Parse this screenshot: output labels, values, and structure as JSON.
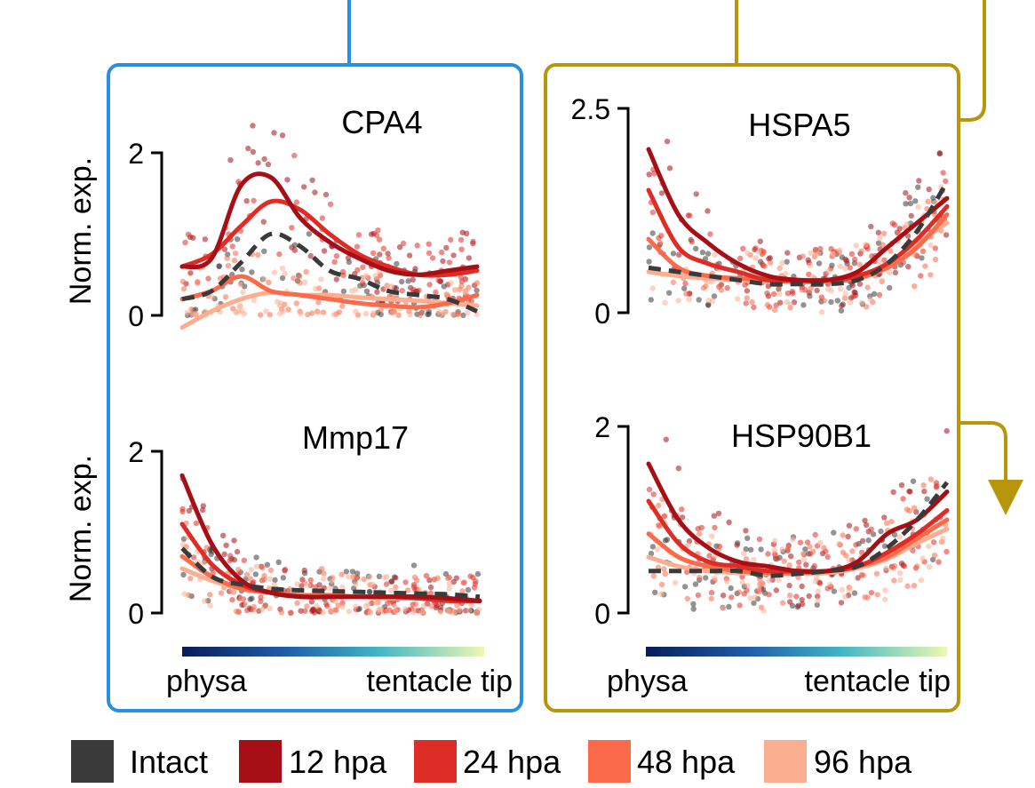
{
  "colors": {
    "intact": "#3a3a3a",
    "hpa12": "#a50f15",
    "hpa24": "#de2d26",
    "hpa48": "#fb6a4a",
    "hpa96": "#fcae91",
    "blue_box": "#2b8fe0",
    "gold_box": "#b8960c"
  },
  "legend": [
    {
      "key": "intact",
      "label": "Intact"
    },
    {
      "key": "hpa12",
      "label": "12 hpa"
    },
    {
      "key": "hpa24",
      "label": "24 hpa"
    },
    {
      "key": "hpa48",
      "label": "48 hpa"
    },
    {
      "key": "hpa96",
      "label": "96 hpa"
    }
  ],
  "gradient_labels": {
    "left": "physa",
    "right": "tentacle tip"
  },
  "ylabel": "Norm. exp.",
  "chart_data": [
    {
      "type": "line",
      "title": "CPA4",
      "ylabel": "Norm. exp.",
      "ylim": [
        0,
        2
      ],
      "yticks": [
        "0",
        "2"
      ],
      "x": [
        0,
        0.1,
        0.2,
        0.3,
        0.4,
        0.5,
        0.6,
        0.7,
        0.8,
        0.9,
        1
      ],
      "series": [
        {
          "name": "Intact",
          "key": "intact",
          "dashed": true,
          "values": [
            0.2,
            0.3,
            0.65,
            1.0,
            0.85,
            0.55,
            0.45,
            0.3,
            0.25,
            0.2,
            0.05
          ]
        },
        {
          "name": "12 hpa",
          "key": "hpa12",
          "values": [
            0.6,
            0.7,
            1.6,
            1.7,
            1.2,
            0.9,
            0.7,
            0.55,
            0.5,
            0.55,
            0.6
          ]
        },
        {
          "name": "24 hpa",
          "key": "hpa24",
          "values": [
            0.6,
            0.75,
            1.1,
            1.4,
            1.3,
            1.0,
            0.75,
            0.6,
            0.5,
            0.5,
            0.55
          ]
        },
        {
          "name": "48 hpa",
          "key": "hpa48",
          "values": [
            0.2,
            0.3,
            0.48,
            0.3,
            0.25,
            0.2,
            0.15,
            0.12,
            0.1,
            0.15,
            0.25
          ]
        },
        {
          "name": "96 hpa",
          "key": "hpa96",
          "values": [
            -0.15,
            0.05,
            0.2,
            0.28,
            0.25,
            0.25,
            0.22,
            0.2,
            0.18,
            0.15,
            0.12
          ]
        }
      ]
    },
    {
      "type": "line",
      "title": "Mmp17",
      "ylabel": "Norm. exp.",
      "ylim": [
        0,
        2
      ],
      "yticks": [
        "0",
        "2"
      ],
      "x": [
        0,
        0.1,
        0.2,
        0.3,
        0.4,
        0.5,
        0.6,
        0.7,
        0.8,
        0.9,
        1
      ],
      "series": [
        {
          "name": "Intact",
          "key": "intact",
          "dashed": true,
          "values": [
            0.8,
            0.45,
            0.35,
            0.3,
            0.28,
            0.27,
            0.26,
            0.25,
            0.24,
            0.23,
            0.2
          ]
        },
        {
          "name": "12 hpa",
          "key": "hpa12",
          "values": [
            1.7,
            0.85,
            0.4,
            0.25,
            0.2,
            0.2,
            0.2,
            0.2,
            0.2,
            0.18,
            0.15
          ]
        },
        {
          "name": "24 hpa",
          "key": "hpa24",
          "values": [
            1.1,
            0.6,
            0.35,
            0.25,
            0.2,
            0.2,
            0.2,
            0.2,
            0.18,
            0.15,
            0.15
          ]
        },
        {
          "name": "48 hpa",
          "key": "hpa48",
          "values": [
            0.7,
            0.45,
            0.3,
            0.25,
            0.22,
            0.22,
            0.2,
            0.2,
            0.2,
            0.18,
            0.15
          ]
        },
        {
          "name": "96 hpa",
          "key": "hpa96",
          "values": [
            0.55,
            0.4,
            0.3,
            0.25,
            0.22,
            0.2,
            0.2,
            0.18,
            0.18,
            0.15,
            0.15
          ]
        }
      ]
    },
    {
      "type": "line",
      "title": "HSPA5",
      "ylabel": "",
      "ylim": [
        0,
        2.5
      ],
      "yticks": [
        "0",
        "2.5"
      ],
      "x": [
        0,
        0.1,
        0.2,
        0.3,
        0.4,
        0.5,
        0.6,
        0.7,
        0.8,
        0.9,
        1
      ],
      "series": [
        {
          "name": "Intact",
          "key": "intact",
          "dashed": true,
          "values": [
            0.55,
            0.5,
            0.45,
            0.4,
            0.35,
            0.35,
            0.35,
            0.4,
            0.6,
            1.0,
            1.6
          ]
        },
        {
          "name": "12 hpa",
          "key": "hpa12",
          "values": [
            2.0,
            1.2,
            0.85,
            0.6,
            0.45,
            0.4,
            0.4,
            0.5,
            0.8,
            1.1,
            1.4
          ]
        },
        {
          "name": "24 hpa",
          "key": "hpa24",
          "values": [
            1.5,
            0.8,
            0.6,
            0.5,
            0.4,
            0.4,
            0.4,
            0.45,
            0.6,
            0.9,
            1.3
          ]
        },
        {
          "name": "48 hpa",
          "key": "hpa48",
          "values": [
            0.9,
            0.55,
            0.45,
            0.42,
            0.4,
            0.38,
            0.38,
            0.42,
            0.55,
            0.8,
            1.2
          ]
        },
        {
          "name": "96 hpa",
          "key": "hpa96",
          "values": [
            0.5,
            0.45,
            0.42,
            0.4,
            0.38,
            0.38,
            0.4,
            0.45,
            0.6,
            0.85,
            1.1
          ]
        }
      ]
    },
    {
      "type": "line",
      "title": "HSP90B1",
      "ylabel": "",
      "ylim": [
        0,
        2
      ],
      "yticks": [
        "0",
        "2"
      ],
      "x": [
        0,
        0.1,
        0.2,
        0.3,
        0.4,
        0.5,
        0.6,
        0.7,
        0.8,
        0.9,
        1
      ],
      "series": [
        {
          "name": "Intact",
          "key": "intact",
          "dashed": true,
          "values": [
            0.45,
            0.45,
            0.45,
            0.45,
            0.4,
            0.42,
            0.45,
            0.5,
            0.7,
            1.0,
            1.4
          ]
        },
        {
          "name": "12 hpa",
          "key": "hpa12",
          "values": [
            1.6,
            1.0,
            0.7,
            0.55,
            0.5,
            0.45,
            0.45,
            0.55,
            0.85,
            1.0,
            1.3
          ]
        },
        {
          "name": "24 hpa",
          "key": "hpa24",
          "values": [
            1.2,
            0.75,
            0.55,
            0.5,
            0.45,
            0.45,
            0.45,
            0.5,
            0.65,
            0.85,
            1.1
          ]
        },
        {
          "name": "48 hpa",
          "key": "hpa48",
          "values": [
            0.85,
            0.6,
            0.5,
            0.45,
            0.43,
            0.43,
            0.45,
            0.5,
            0.6,
            0.8,
            1.0
          ]
        },
        {
          "name": "96 hpa",
          "key": "hpa96",
          "values": [
            0.6,
            0.5,
            0.45,
            0.43,
            0.42,
            0.42,
            0.43,
            0.48,
            0.58,
            0.75,
            0.9
          ]
        }
      ]
    }
  ]
}
